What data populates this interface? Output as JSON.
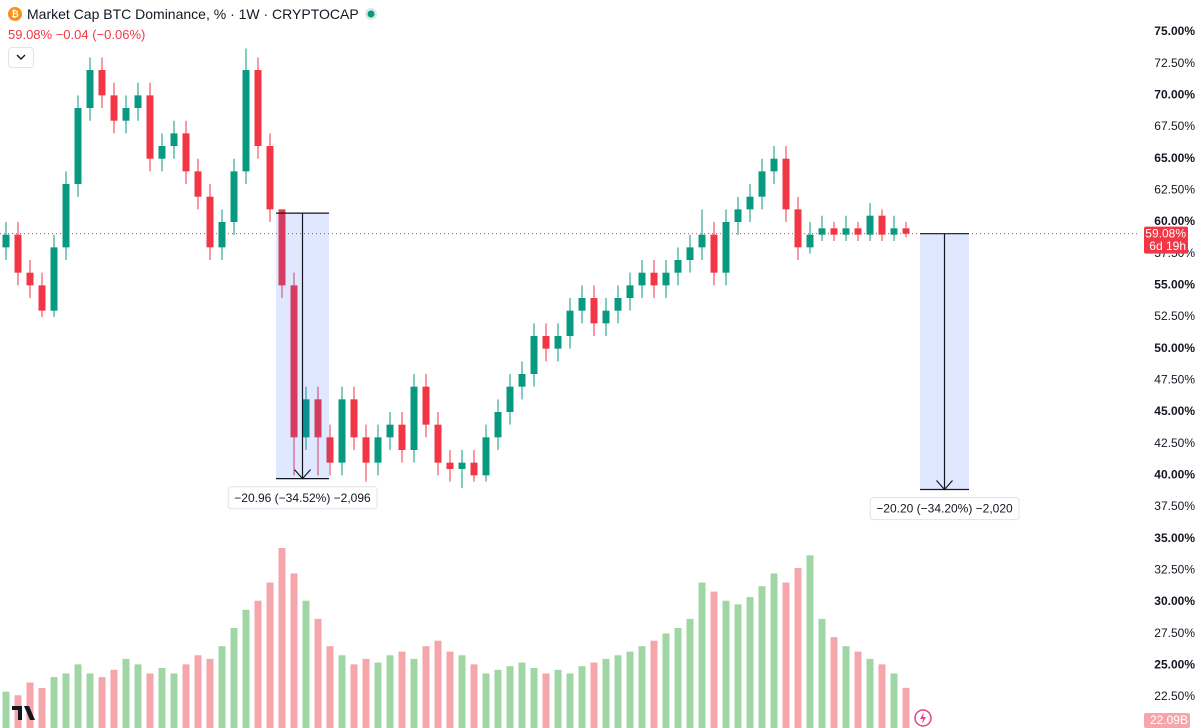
{
  "chart_data": {
    "type": "candlestick",
    "title": "Market Cap BTC Dominance, % · 1W · CRYPTOCAP",
    "change_label": "−0.04 (−0.06%)",
    "last": {
      "value": 59.08,
      "label": "59.08%"
    },
    "countdown": "6d 19h",
    "open": [
      58,
      59,
      56,
      55,
      53,
      58,
      63,
      69,
      72,
      70,
      68,
      69,
      70,
      65,
      66,
      67,
      64,
      62,
      58,
      60,
      64,
      72,
      66,
      61,
      55,
      43,
      46,
      43,
      41,
      46,
      43,
      41,
      43,
      44,
      42,
      47,
      44,
      41,
      40.5,
      41,
      40,
      43,
      45,
      47,
      48,
      51,
      50,
      51,
      53,
      54,
      52,
      53,
      54,
      55,
      56,
      55,
      56,
      57,
      58,
      59,
      56,
      60,
      61,
      62,
      64,
      65,
      61,
      58,
      59,
      59.5,
      59,
      59.5,
      59,
      60.5,
      59,
      59.5
    ],
    "high": [
      60,
      60,
      57,
      56,
      59,
      64,
      70,
      73,
      73,
      71,
      70,
      71,
      71,
      67,
      68,
      68,
      65,
      63,
      61,
      65,
      73.7,
      73,
      67,
      61,
      56,
      47,
      47,
      44,
      47,
      47,
      44,
      44,
      45,
      45,
      48,
      48,
      45,
      42,
      42,
      42,
      44,
      46,
      48,
      49,
      52,
      52,
      52,
      54,
      55,
      55,
      54,
      55,
      56,
      57,
      57,
      57,
      58,
      59,
      61,
      60,
      61,
      62,
      63,
      65,
      66,
      66,
      62,
      60,
      60.5,
      60,
      60.5,
      60,
      61.5,
      61,
      60.5,
      60
    ],
    "low": [
      57,
      55,
      54,
      52.5,
      52.5,
      57,
      62,
      68,
      69,
      67,
      67,
      68,
      64,
      64,
      65,
      63,
      61,
      57,
      57,
      59,
      63,
      65,
      60,
      54,
      40,
      42,
      40,
      40,
      40,
      42,
      39.5,
      40,
      42,
      41,
      41,
      43,
      40,
      39.5,
      39,
      39.5,
      39.5,
      42,
      44,
      46,
      47,
      49,
      49,
      50,
      52,
      51,
      51,
      52,
      53,
      54,
      54,
      54,
      55,
      56,
      57,
      55,
      55,
      59,
      60,
      61,
      63,
      60,
      57,
      57.5,
      58.5,
      58.5,
      58.5,
      58.5,
      58.5,
      58.5,
      58.5,
      58.8
    ],
    "close": [
      59,
      56,
      55,
      53,
      58,
      63,
      69,
      72,
      70,
      68,
      69,
      70,
      65,
      66,
      67,
      64,
      62,
      58,
      60,
      64,
      72,
      66,
      61,
      55,
      43,
      46,
      43,
      41,
      46,
      43,
      41,
      43,
      44,
      42,
      47,
      44,
      41,
      40.5,
      41,
      40,
      43,
      45,
      47,
      48,
      51,
      50,
      51,
      53,
      54,
      52,
      53,
      54,
      55,
      56,
      55,
      56,
      57,
      58,
      59,
      56,
      60,
      61,
      62,
      64,
      65,
      61,
      58,
      59,
      59.5,
      59,
      59.5,
      59,
      60.5,
      59,
      59.5,
      59.08
    ],
    "volume": [
      20,
      18,
      25,
      22,
      28,
      30,
      35,
      30,
      28,
      32,
      38,
      35,
      30,
      33,
      30,
      35,
      40,
      38,
      45,
      55,
      65,
      70,
      80,
      99,
      85,
      70,
      60,
      45,
      40,
      35,
      38,
      36,
      40,
      42,
      38,
      45,
      48,
      42,
      40,
      35,
      30,
      32,
      34,
      36,
      33,
      30,
      32,
      30,
      34,
      36,
      38,
      40,
      42,
      45,
      48,
      52,
      55,
      60,
      80,
      75,
      70,
      68,
      72,
      78,
      85,
      80,
      88,
      95,
      60,
      50,
      45,
      42,
      38,
      35,
      30,
      22.09
    ],
    "volume_last_label": "22.09B",
    "vlim": [
      0,
      110
    ],
    "ylim": [
      20.05,
      77.53
    ],
    "yticks": [
      {
        "value": 22.5,
        "label": "22.50%"
      },
      {
        "value": 25,
        "label": "25.00%"
      },
      {
        "value": 27.5,
        "label": "27.50%"
      },
      {
        "value": 30,
        "label": "30.00%"
      },
      {
        "value": 32.5,
        "label": "32.50%"
      },
      {
        "value": 35,
        "label": "35.00%"
      },
      {
        "value": 37.5,
        "label": "37.50%"
      },
      {
        "value": 40,
        "label": "40.00%"
      },
      {
        "value": 42.5,
        "label": "42.50%"
      },
      {
        "value": 45,
        "label": "45.00%"
      },
      {
        "value": 47.5,
        "label": "47.50%"
      },
      {
        "value": 50,
        "label": "50.00%"
      },
      {
        "value": 52.5,
        "label": "52.50%"
      },
      {
        "value": 55,
        "label": "55.00%"
      },
      {
        "value": 57.5,
        "label": "57.50%"
      },
      {
        "value": 60,
        "label": "60.00%"
      },
      {
        "value": 62.5,
        "label": "62.50%"
      },
      {
        "value": 65,
        "label": "65.00%"
      },
      {
        "value": 67.5,
        "label": "67.50%"
      },
      {
        "value": 70,
        "label": "70.00%"
      },
      {
        "value": 72.5,
        "label": "72.50%"
      },
      {
        "value": 75,
        "label": "75.00%"
      }
    ],
    "measures": [
      {
        "from": 60.7,
        "to": 39.74,
        "label": "−20.96 (−34.52%) −2,096"
      },
      {
        "from": 59.08,
        "to": 38.88,
        "label": "−20.20 (−34.20%) −2,020"
      }
    ],
    "up_color": "#089981",
    "down_color": "#f23645",
    "volume_up_color": "#9fd6a4",
    "volume_down_color": "#f4a6ab"
  }
}
